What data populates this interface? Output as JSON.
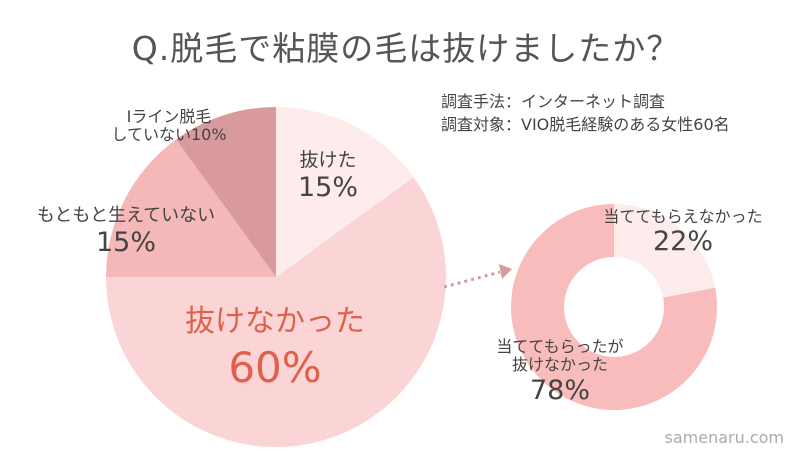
{
  "title": "Q.脱毛で粘膜の毛は抜けましたか？",
  "survey": {
    "method": "調査手法：インターネット調査",
    "target": "調査対象：VIO脱毛経験のある女性60名"
  },
  "watermark": "samenaru.com",
  "chart_data": [
    {
      "type": "pie",
      "slices": [
        {
          "label": "抜けた",
          "value": 15,
          "display": "15%",
          "color": "#fdeceb"
        },
        {
          "label": "抜けなかった",
          "value": 60,
          "display": "60%",
          "color": "#fbd5d5"
        },
        {
          "label": "もともと生えていない",
          "value": 15,
          "display": "15%",
          "color": "#f5b8b8"
        },
        {
          "label": "Iライン脱毛していない",
          "value": 10,
          "display": "10%",
          "color": "#d89a9c"
        }
      ]
    },
    {
      "type": "pie",
      "donut": true,
      "slices": [
        {
          "label": "当ててもらえなかった",
          "value": 22,
          "display": "22%",
          "color": "#fdeceb"
        },
        {
          "label": "当ててもらったが抜けなかった",
          "value": 78,
          "display": "78%",
          "color": "#f8bcbc"
        }
      ]
    }
  ],
  "labels": {
    "nuketa": {
      "text": "抜けた",
      "pct": "15%"
    },
    "nukenakatta": {
      "text": "抜けなかった",
      "pct": "60%"
    },
    "motomoto": {
      "text": "もともと生えていない",
      "pct": "15%"
    },
    "iline": {
      "line1": "Iライン脱毛",
      "line2": "していない10%"
    },
    "atete_nashi": {
      "text": "当ててもらえなかった",
      "pct": "22%"
    },
    "atete_ari": {
      "line1": "当ててもらったが",
      "line2": "抜けなかった",
      "pct": "78%"
    }
  },
  "colors": {
    "accent": "#e0604e",
    "arrow": "#d89a9c"
  }
}
